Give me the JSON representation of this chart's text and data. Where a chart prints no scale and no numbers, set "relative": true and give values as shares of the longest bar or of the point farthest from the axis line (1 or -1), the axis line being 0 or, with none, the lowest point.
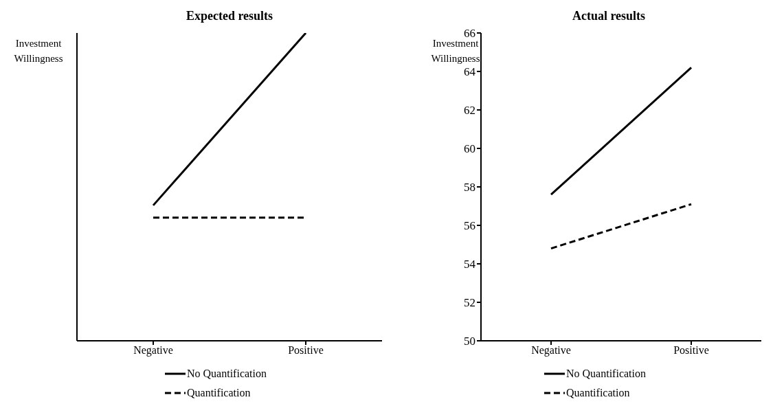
{
  "chart_data": [
    {
      "type": "line",
      "title": "Expected results",
      "ylabel": "Investment Willingness",
      "categories": [
        "Negative",
        "Positive"
      ],
      "relative": true,
      "legend": "bottom",
      "series": [
        {
          "name": "No Quantification",
          "color": "#000000",
          "values": [
            0.44,
            1
          ]
        },
        {
          "name": "Quantification",
          "color": "#000000",
          "values": [
            0.4,
            0.4
          ],
          "line_style": "dashed"
        }
      ]
    },
    {
      "type": "line",
      "title": "Actual results",
      "ylabel": "Investment Willingness",
      "categories": [
        "Negative",
        "Positive"
      ],
      "ylim": [
        50,
        66
      ],
      "yticks": [
        50,
        52,
        54,
        56,
        58,
        60,
        62,
        64,
        66
      ],
      "legend": "bottom",
      "series": [
        {
          "name": "No Quantification",
          "color": "#000000",
          "values": [
            57.6,
            64.2
          ]
        },
        {
          "name": "Quantification",
          "color": "#000000",
          "values": [
            54.8,
            57.1
          ],
          "line_style": "dashed"
        }
      ]
    }
  ]
}
